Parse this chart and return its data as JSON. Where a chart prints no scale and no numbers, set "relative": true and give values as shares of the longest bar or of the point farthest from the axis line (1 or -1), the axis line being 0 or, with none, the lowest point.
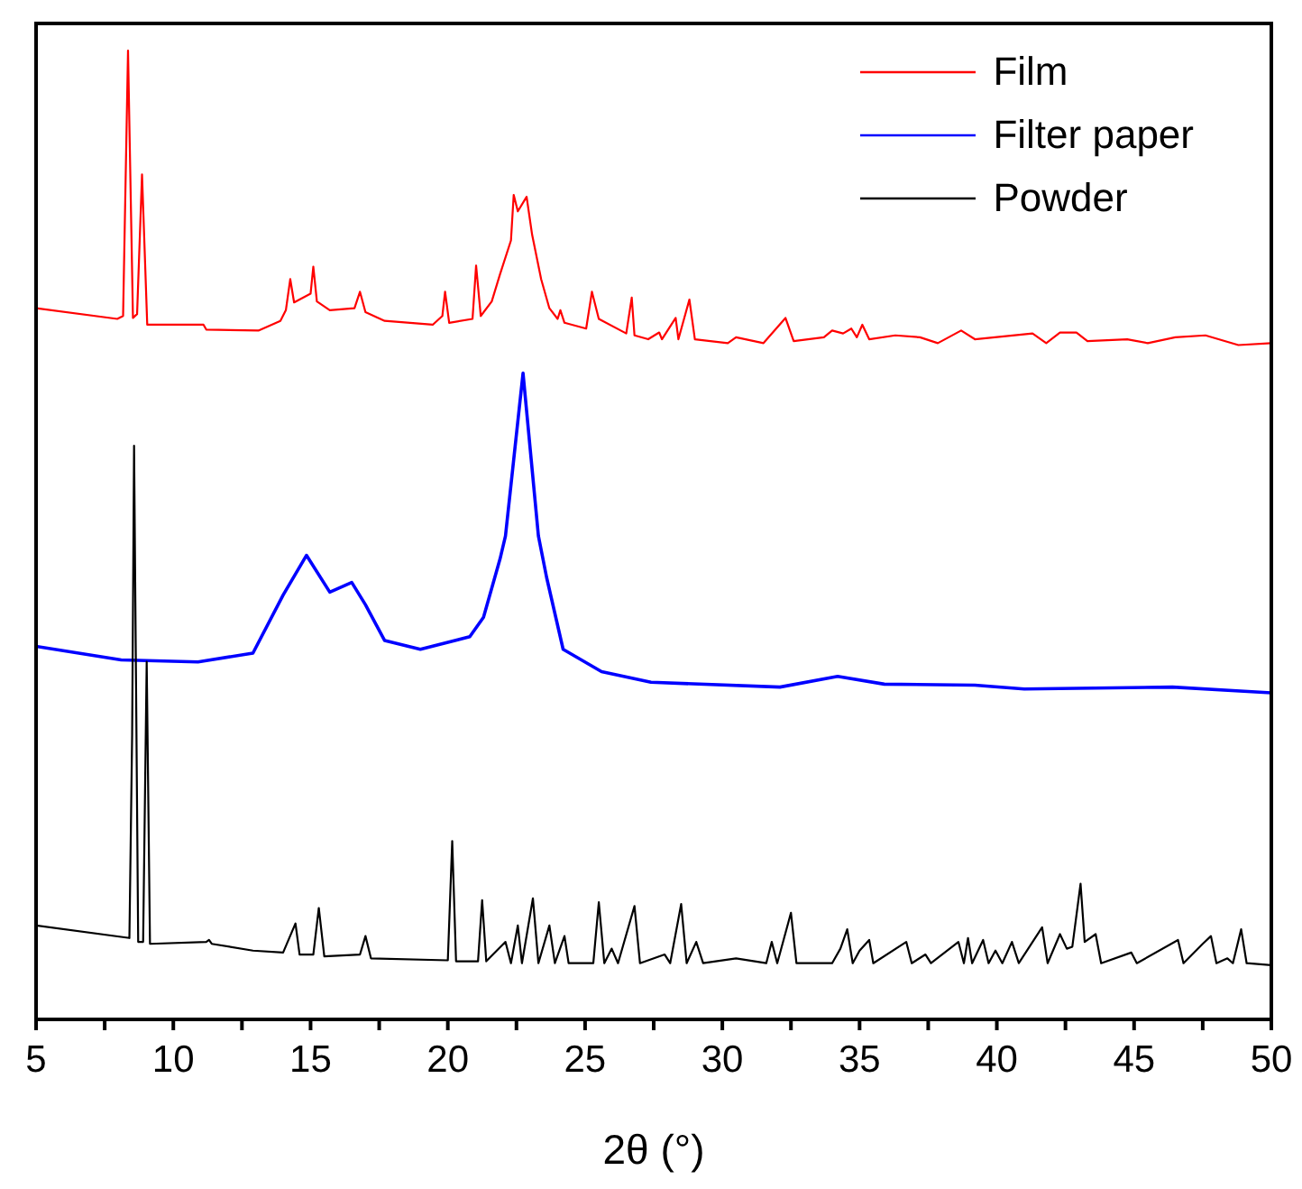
{
  "chart_data": {
    "type": "line",
    "xlabel": "2θ (°)",
    "relative": true,
    "legend": "top right",
    "xlim": [
      5,
      50
    ],
    "xticks": [
      5,
      {
        "value": 7.5,
        "label": null
      },
      10,
      {
        "value": 12.5,
        "label": null
      },
      15,
      {
        "value": 17.5,
        "label": null
      },
      20,
      {
        "value": 22.5,
        "label": null
      },
      25,
      {
        "value": 27.5,
        "label": null
      },
      30,
      {
        "value": 32.5,
        "label": null
      },
      35,
      {
        "value": 37.5,
        "label": null
      },
      40,
      {
        "value": 42.5,
        "label": null
      },
      45,
      {
        "value": 47.5,
        "label": null
      },
      50
    ],
    "series": [
      {
        "name": "Film",
        "color": "#ff0000",
        "x": [
          5,
          7.96,
          8.17,
          8.35,
          8.53,
          8.68,
          8.86,
          9.05,
          11.1,
          11.2,
          13.1,
          13.9,
          14.1,
          14.26,
          14.4,
          15.0,
          15.1,
          15.23,
          15.7,
          16.6,
          16.8,
          17.0,
          17.7,
          19.45,
          19.8,
          19.9,
          20.05,
          20.9,
          21.03,
          21.2,
          21.6,
          21.9,
          22.3,
          22.4,
          22.55,
          22.87,
          23.07,
          23.4,
          23.7,
          24.0,
          24.1,
          24.25,
          25.04,
          25.25,
          25.5,
          26.5,
          26.7,
          26.8,
          27.3,
          27.7,
          27.8,
          28.3,
          28.4,
          28.8,
          29.0,
          30.2,
          30.5,
          31.5,
          32.3,
          32.6,
          33.7,
          34.0,
          34.4,
          34.7,
          34.9,
          35.1,
          35.35,
          36.3,
          37.2,
          37.85,
          38.7,
          39.2,
          41.3,
          41.8,
          42.3,
          42.9,
          43.3,
          44.75,
          45.5,
          46.5,
          47.6,
          48.8,
          50
        ],
        "values": [
          0.734,
          0.723,
          0.726,
          1.0,
          0.724,
          0.728,
          0.872,
          0.717,
          0.717,
          0.712,
          0.711,
          0.721,
          0.732,
          0.764,
          0.74,
          0.749,
          0.777,
          0.741,
          0.732,
          0.734,
          0.751,
          0.73,
          0.721,
          0.717,
          0.726,
          0.751,
          0.719,
          0.723,
          0.778,
          0.726,
          0.741,
          0.769,
          0.804,
          0.851,
          0.834,
          0.849,
          0.81,
          0.764,
          0.734,
          0.723,
          0.732,
          0.719,
          0.713,
          0.751,
          0.723,
          0.708,
          0.745,
          0.706,
          0.702,
          0.709,
          0.702,
          0.724,
          0.702,
          0.743,
          0.702,
          0.698,
          0.704,
          0.698,
          0.724,
          0.7,
          0.704,
          0.711,
          0.708,
          0.713,
          0.704,
          0.717,
          0.702,
          0.706,
          0.704,
          0.698,
          0.711,
          0.702,
          0.708,
          0.698,
          0.709,
          0.709,
          0.7,
          0.702,
          0.698,
          0.704,
          0.706,
          0.696,
          0.698
        ]
      },
      {
        "name": "Filter paper",
        "color": "#0000ff",
        "x": [
          5,
          8.1,
          10.9,
          12.9,
          14.0,
          14.85,
          15.7,
          16.5,
          17.0,
          17.7,
          19.0,
          20.8,
          21.3,
          21.9,
          22.1,
          22.74,
          23.3,
          23.6,
          24.2,
          25.6,
          27.4,
          32.1,
          34.2,
          35.9,
          39.2,
          41.0,
          46.4,
          50
        ],
        "values": [
          0.385,
          0.371,
          0.369,
          0.378,
          0.438,
          0.479,
          0.441,
          0.451,
          0.428,
          0.391,
          0.382,
          0.395,
          0.415,
          0.475,
          0.499,
          0.667,
          0.499,
          0.456,
          0.382,
          0.359,
          0.348,
          0.343,
          0.354,
          0.346,
          0.345,
          0.341,
          0.343,
          0.337
        ]
      },
      {
        "name": "Powder",
        "color": "#000000",
        "x": [
          5,
          8.4,
          8.5,
          8.57,
          8.72,
          8.9,
          9.03,
          9.15,
          11.2,
          11.3,
          11.4,
          12.9,
          14.0,
          14.45,
          14.6,
          15.1,
          15.3,
          15.5,
          16.8,
          17.0,
          17.2,
          20.0,
          20.16,
          20.3,
          21.1,
          21.25,
          21.4,
          22.1,
          22.3,
          22.55,
          22.7,
          23.1,
          23.3,
          23.7,
          23.9,
          24.25,
          24.4,
          25.3,
          25.5,
          25.7,
          25.97,
          26.2,
          26.8,
          27.0,
          27.9,
          28.1,
          28.5,
          28.7,
          29.05,
          29.3,
          30.5,
          31.6,
          31.8,
          32.0,
          32.5,
          32.7,
          34.0,
          34.3,
          34.55,
          34.75,
          35.0,
          35.35,
          35.5,
          36.7,
          36.9,
          37.4,
          37.6,
          38.6,
          38.8,
          38.95,
          39.1,
          39.5,
          39.7,
          39.95,
          40.2,
          40.55,
          40.8,
          41.65,
          41.85,
          42.3,
          42.55,
          42.75,
          43.05,
          43.2,
          43.6,
          43.8,
          44.9,
          45.1,
          46.6,
          46.8,
          47.5,
          47.8,
          48.0,
          48.4,
          48.6,
          48.9,
          49.1,
          50
        ],
        "values": [
          0.097,
          0.084,
          0.294,
          0.592,
          0.08,
          0.08,
          0.369,
          0.078,
          0.08,
          0.082,
          0.078,
          0.071,
          0.069,
          0.099,
          0.067,
          0.067,
          0.115,
          0.065,
          0.067,
          0.086,
          0.063,
          0.061,
          0.184,
          0.06,
          0.06,
          0.123,
          0.06,
          0.08,
          0.058,
          0.097,
          0.058,
          0.125,
          0.058,
          0.097,
          0.058,
          0.086,
          0.058,
          0.058,
          0.121,
          0.058,
          0.073,
          0.058,
          0.117,
          0.058,
          0.067,
          0.058,
          0.119,
          0.058,
          0.08,
          0.058,
          0.063,
          0.058,
          0.08,
          0.058,
          0.11,
          0.058,
          0.058,
          0.073,
          0.093,
          0.058,
          0.071,
          0.082,
          0.058,
          0.08,
          0.058,
          0.067,
          0.058,
          0.08,
          0.058,
          0.084,
          0.058,
          0.082,
          0.058,
          0.071,
          0.058,
          0.08,
          0.058,
          0.095,
          0.058,
          0.088,
          0.073,
          0.075,
          0.14,
          0.08,
          0.088,
          0.058,
          0.069,
          0.058,
          0.082,
          0.058,
          0.078,
          0.086,
          0.058,
          0.063,
          0.058,
          0.093,
          0.058,
          0.056
        ]
      }
    ]
  }
}
